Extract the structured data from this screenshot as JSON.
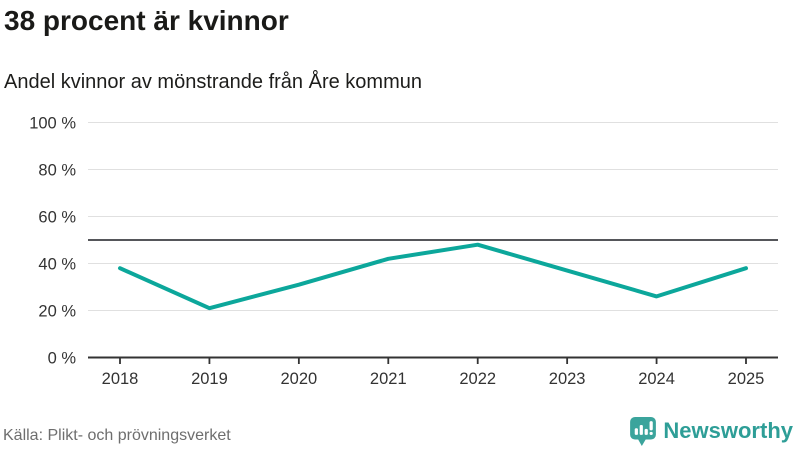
{
  "header": {
    "title": "38 procent är kvinnor",
    "subtitle": "Andel kvinnor av mönstrande från Åre kommun"
  },
  "chart_data": {
    "type": "line",
    "title": "38 procent är kvinnor",
    "subtitle": "Andel kvinnor av mönstrande från Åre kommun",
    "categories": [
      "2018",
      "2019",
      "2020",
      "2021",
      "2022",
      "2023",
      "2024",
      "2025"
    ],
    "series": [
      {
        "name": "Andel kvinnor av mönstrande",
        "values": [
          38,
          21,
          31,
          42,
          48,
          37,
          26,
          38
        ],
        "color": "#0ca79b"
      }
    ],
    "reference_line": {
      "value": 50,
      "color": "#55565a"
    },
    "ylim": [
      0,
      100
    ],
    "yticks": [
      0,
      20,
      40,
      60,
      80,
      100
    ],
    "ytick_labels": [
      "0 %",
      "20 %",
      "40 %",
      "60 %",
      "80 %",
      "100 %"
    ],
    "xlabel": "",
    "ylabel": "",
    "grid": true,
    "legend_position": "none",
    "colors": {
      "line": "#0ca79b",
      "reference": "#55565a",
      "grid": "#e0e0e0",
      "axis": "#333333",
      "tick_label": "#333333"
    }
  },
  "footer": {
    "source": "Källa: Plikt- och prövningsverket",
    "brand": "Newsworthy",
    "brand_color": "#2e9e97"
  }
}
